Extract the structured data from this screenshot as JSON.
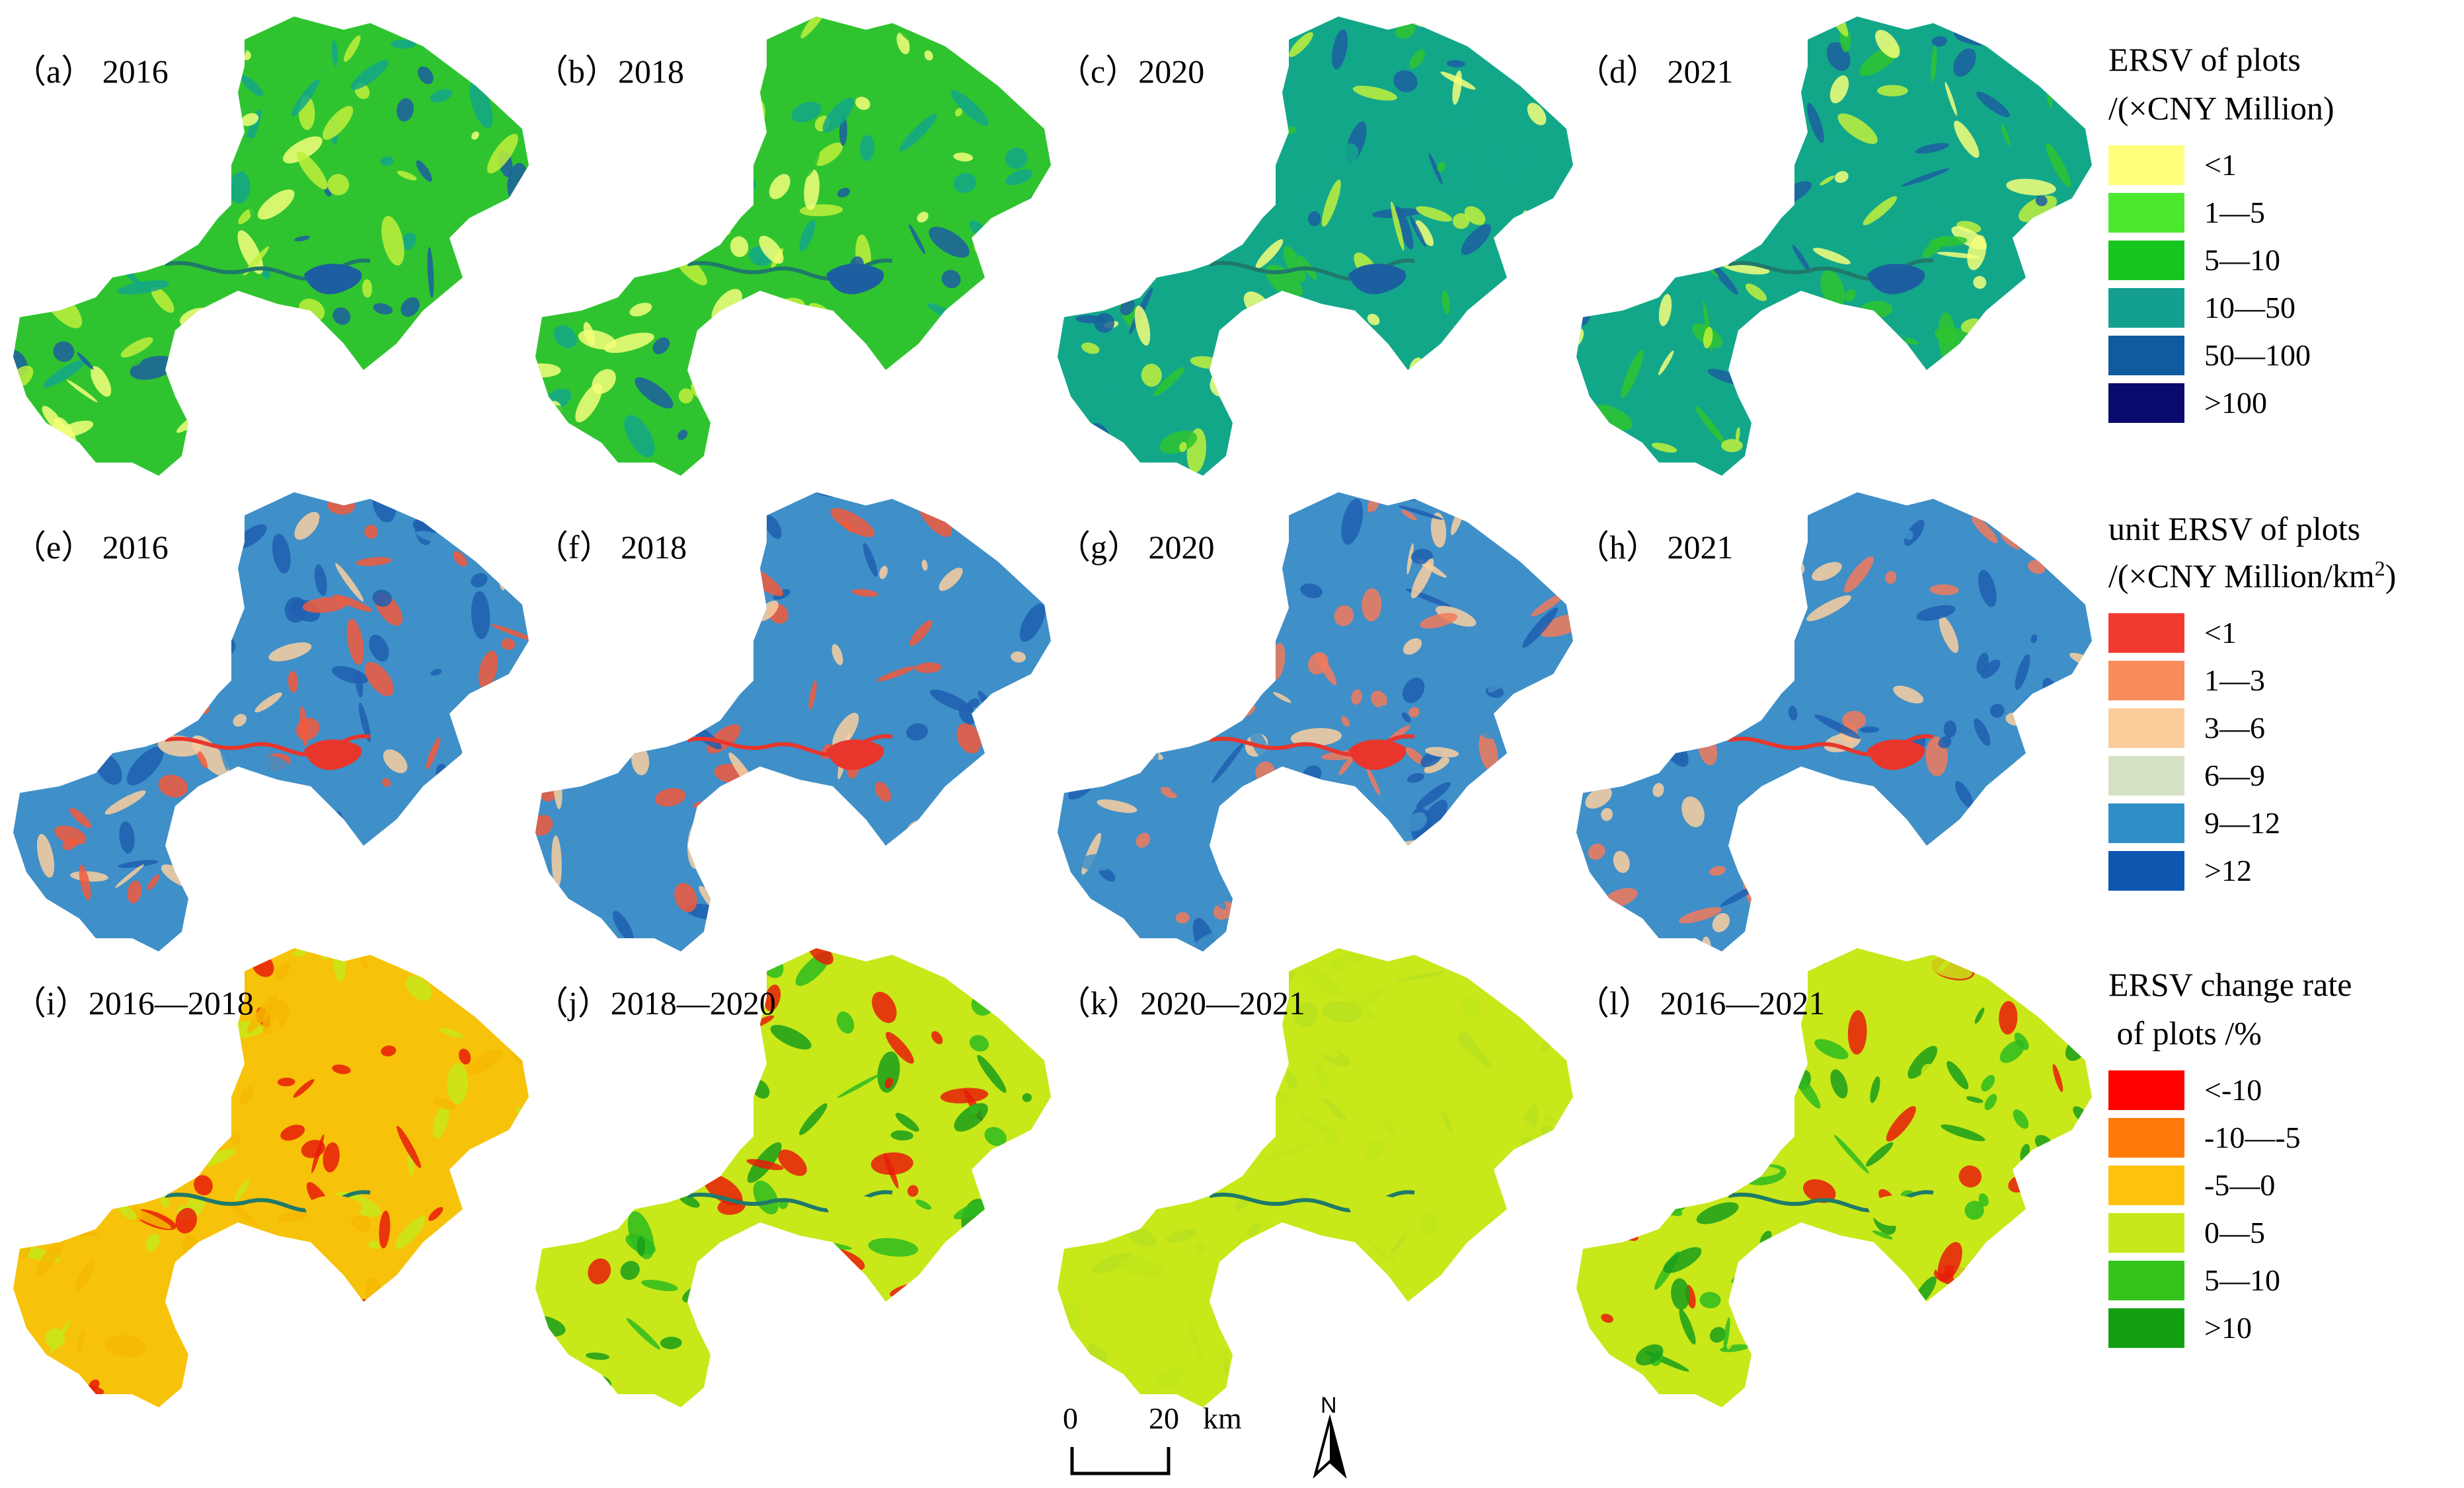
{
  "panels": [
    {
      "label": "（a） 2016",
      "scheme": "ersv",
      "colors": [
        "#c0f03c",
        "#2fc42f",
        "#13a78a",
        "#f4ff7a",
        "#1c5fa0"
      ],
      "tint": "#2fc42f"
    },
    {
      "label": "（b）2018",
      "scheme": "ersv",
      "colors": [
        "#c0f03c",
        "#2fc42f",
        "#13a78a",
        "#f4ff7a",
        "#1c5fa0"
      ],
      "tint": "#2fc42f"
    },
    {
      "label": "（c）2020",
      "scheme": "ersv",
      "colors": [
        "#13a78a",
        "#1c5fa0",
        "#2fc42f",
        "#c0f03c",
        "#f4ff7a"
      ],
      "tint": "#13a78a"
    },
    {
      "label": "（d） 2021",
      "scheme": "ersv",
      "colors": [
        "#13a78a",
        "#1c5fa0",
        "#2fc42f",
        "#c0f03c",
        "#f4ff7a"
      ],
      "tint": "#13a78a"
    },
    {
      "label": "（e） 2016",
      "scheme": "unit",
      "colors": [
        "#3f8fc8",
        "#1f5fb0",
        "#f9cfa0",
        "#f25a3c"
      ],
      "tint": "#3f8fc8"
    },
    {
      "label": "（f） 2018",
      "scheme": "unit",
      "colors": [
        "#3f8fc8",
        "#1f5fb0",
        "#f9cfa0",
        "#f25a3c"
      ],
      "tint": "#3f8fc8"
    },
    {
      "label": "（g） 2020",
      "scheme": "unit",
      "colors": [
        "#3f8fc8",
        "#1f5fb0",
        "#f9cfa0",
        "#f27a5c"
      ],
      "tint": "#3f8fc8"
    },
    {
      "label": "（h） 2021",
      "scheme": "unit",
      "colors": [
        "#3f8fc8",
        "#1f5fb0",
        "#f9cfa0",
        "#f27a5c"
      ],
      "tint": "#3f8fc8"
    },
    {
      "label": "（i）2016—2018",
      "scheme": "change",
      "colors": [
        "#f7c20a",
        "#f5b800",
        "#c8e81a",
        "#e81c0a"
      ],
      "tint": "#f7c20a"
    },
    {
      "label": "（j）2018—2020",
      "scheme": "change",
      "colors": [
        "#c8e81a",
        "#2dbb20",
        "#1a9e1a",
        "#e81c0a"
      ],
      "tint": "#c8e81a"
    },
    {
      "label": "（k）2020—2021",
      "scheme": "change",
      "colors": [
        "#c8e81a",
        "#bfe61c",
        "#c8e81a",
        "#b8e020"
      ],
      "tint": "#c8e81a"
    },
    {
      "label": "（l） 2016—2021",
      "scheme": "change",
      "colors": [
        "#c8e81a",
        "#2dbb20",
        "#1a9e1a",
        "#e81c0a"
      ],
      "tint": "#c8e81a"
    }
  ],
  "legends": [
    {
      "title_line1": "ERSV of plots",
      "title_line2": "/(×CNY Million)",
      "title_sup": "",
      "title_after": "",
      "items": [
        {
          "label": "<1",
          "color": "#ffff7a"
        },
        {
          "label": "1—5",
          "color": "#4ce82e"
        },
        {
          "label": "5—10",
          "color": "#18c41e"
        },
        {
          "label": "10—50",
          "color": "#13a08e"
        },
        {
          "label": "50—100",
          "color": "#105aa0"
        },
        {
          "label": ">100",
          "color": "#0a0a6e"
        }
      ]
    },
    {
      "title_line1": "unit ERSV of plots",
      "title_line2": "/(×CNY Million/km",
      "title_sup": "2",
      "title_after": ")",
      "items": [
        {
          "label": "<1",
          "color": "#f23b30"
        },
        {
          "label": "1—3",
          "color": "#f98c5c"
        },
        {
          "label": "3—6",
          "color": "#fbcd9a"
        },
        {
          "label": "6—9",
          "color": "#d6e2c4"
        },
        {
          "label": "9—12",
          "color": "#2f8ec8"
        },
        {
          "label": ">12",
          "color": "#0e56b0"
        }
      ]
    },
    {
      "title_line1": "ERSV change rate",
      "title_line2": " of plots /%",
      "title_sup": "",
      "title_after": "",
      "items": [
        {
          "label": "<-10",
          "color": "#ff0000"
        },
        {
          "label": "-10—-5",
          "color": "#ff7a0a"
        },
        {
          "label": "-5—0",
          "color": "#ffc20a"
        },
        {
          "label": "0—5",
          "color": "#c6e81a"
        },
        {
          "label": "5—10",
          "color": "#34c41c"
        },
        {
          "label": ">10",
          "color": "#12a012"
        }
      ]
    }
  ],
  "scale_bar": {
    "zero": "0",
    "distance": "20",
    "unit": "km"
  },
  "north_arrow": {
    "label": "N"
  }
}
